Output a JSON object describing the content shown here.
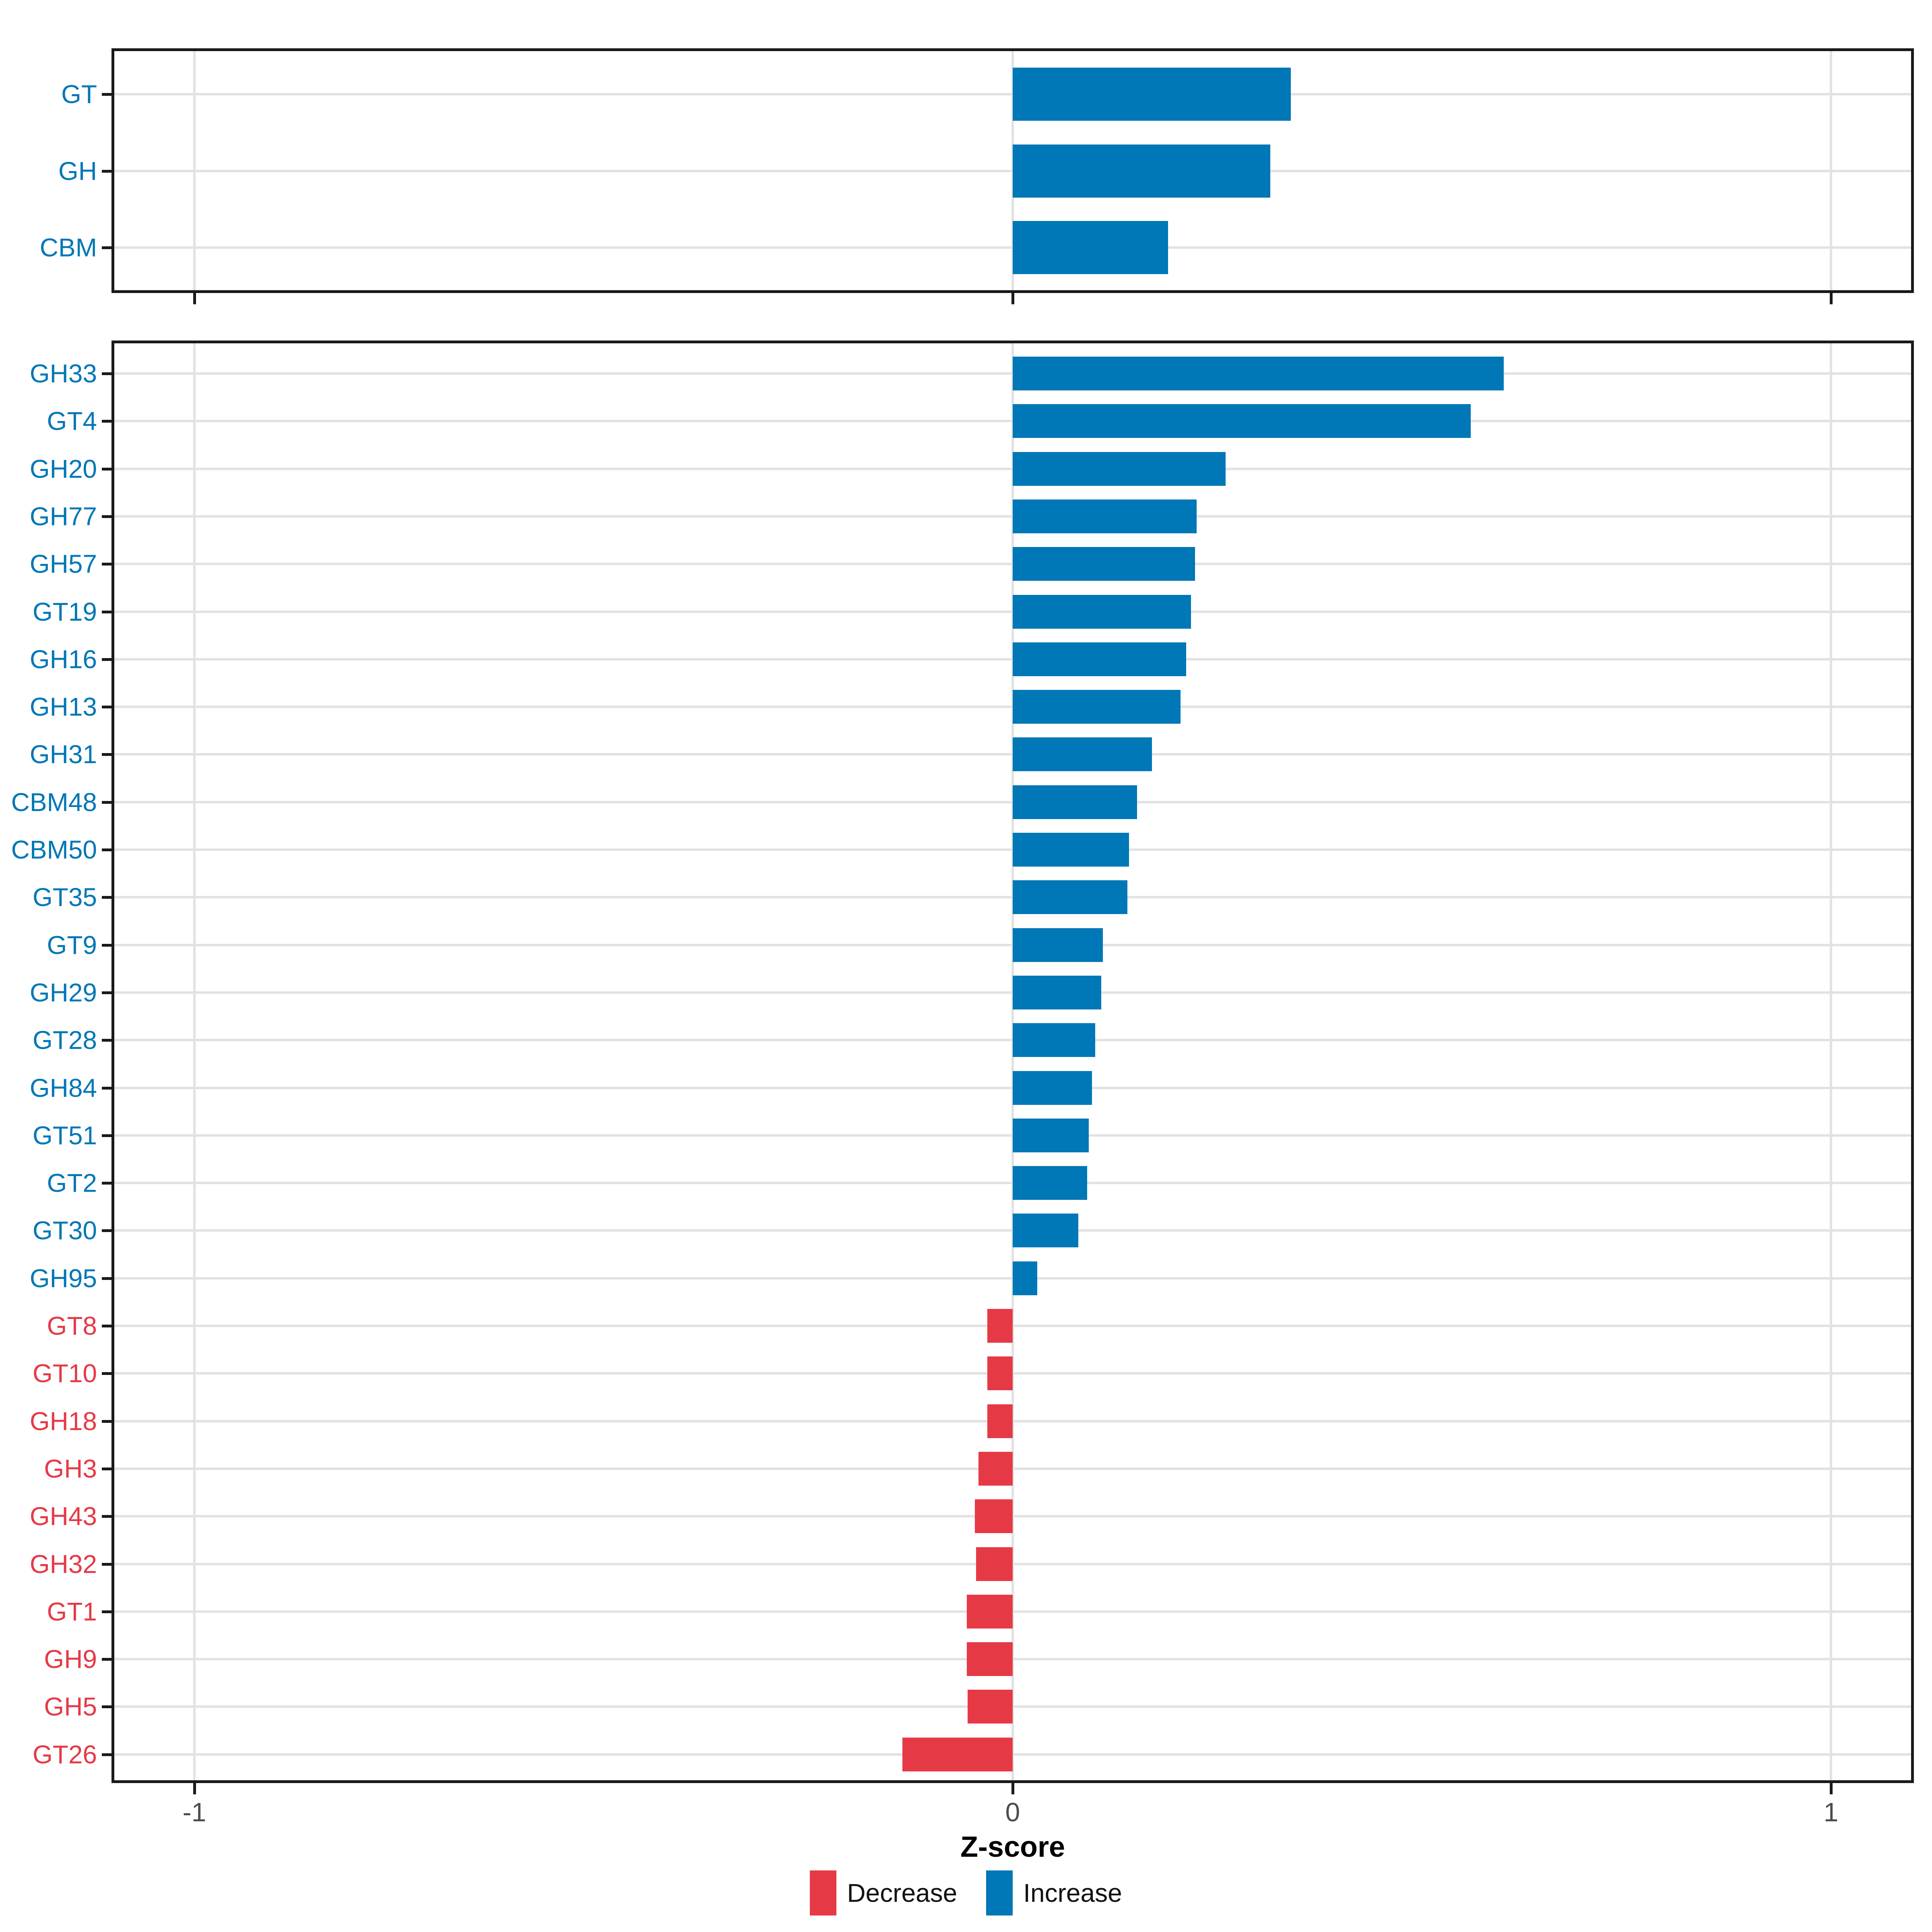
{
  "figure": {
    "xlabel": "Z-score"
  },
  "axis": {
    "range": [
      -1.1,
      1.1
    ],
    "ticks": [
      -1,
      0,
      1
    ],
    "tick_labels": [
      "-1",
      "0",
      "1"
    ],
    "grid": "on"
  },
  "legend": {
    "position": "bottom",
    "items": [
      {
        "label": "Decrease",
        "direction": "decrease"
      },
      {
        "label": "Increase",
        "direction": "increase"
      }
    ]
  },
  "colors": {
    "increase": "#0077B6",
    "decrease": "#E63946",
    "grid": "#E2E2E2",
    "panel_border": "#1A1A1A",
    "axis_tick": "#1A1A1A",
    "tick_label": "#4D4D4D",
    "background": "#FFFFFF"
  },
  "chart_data": [
    {
      "type": "bar",
      "orientation": "horizontal",
      "panel": "cazyme-classes",
      "title": "",
      "xlabel": "Z-score",
      "ylabel": "",
      "xlim": [
        -1.1,
        1.1
      ],
      "categories": [
        "GT",
        "GH",
        "CBM"
      ],
      "values": [
        0.34,
        0.315,
        0.19
      ],
      "directions": [
        "increase",
        "increase",
        "increase"
      ]
    },
    {
      "type": "bar",
      "orientation": "horizontal",
      "panel": "cazyme-families",
      "title": "",
      "xlabel": "Z-score",
      "ylabel": "",
      "xlim": [
        -1.1,
        1.1
      ],
      "categories": [
        "GH33",
        "GT4",
        "GH20",
        "GH77",
        "GH57",
        "GT19",
        "GH16",
        "GH13",
        "GH31",
        "CBM48",
        "CBM50",
        "GT35",
        "GT9",
        "GH29",
        "GT28",
        "GH84",
        "GT51",
        "GT2",
        "GT30",
        "GH95",
        "GT8",
        "GT10",
        "GH18",
        "GH3",
        "GH43",
        "GH32",
        "GT1",
        "GH9",
        "GH5",
        "GT26"
      ],
      "values": [
        0.6,
        0.56,
        0.26,
        0.225,
        0.223,
        0.218,
        0.212,
        0.205,
        0.17,
        0.152,
        0.142,
        0.14,
        0.11,
        0.108,
        0.101,
        0.097,
        0.093,
        0.091,
        0.08,
        0.03,
        -0.031,
        -0.031,
        -0.031,
        -0.042,
        -0.046,
        -0.045,
        -0.056,
        -0.056,
        -0.055,
        -0.135
      ],
      "directions": [
        "increase",
        "increase",
        "increase",
        "increase",
        "increase",
        "increase",
        "increase",
        "increase",
        "increase",
        "increase",
        "increase",
        "increase",
        "increase",
        "increase",
        "increase",
        "increase",
        "increase",
        "increase",
        "increase",
        "increase",
        "decrease",
        "decrease",
        "decrease",
        "decrease",
        "decrease",
        "decrease",
        "decrease",
        "decrease",
        "decrease",
        "decrease"
      ]
    }
  ]
}
